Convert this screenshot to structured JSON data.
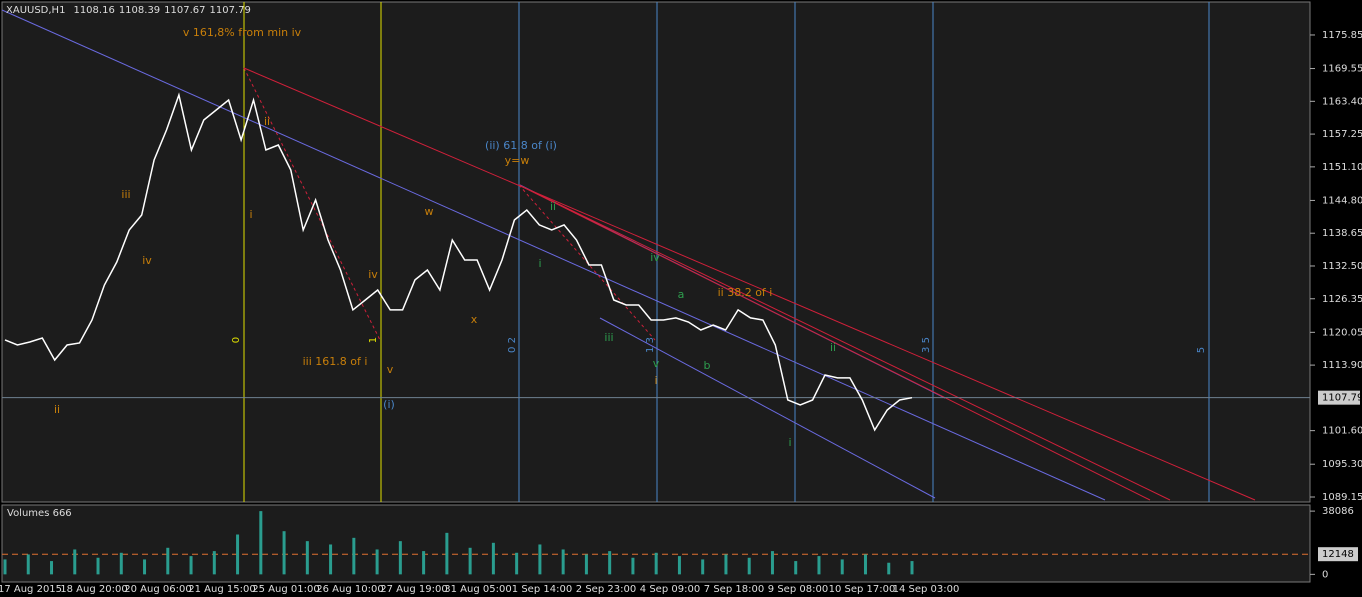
{
  "header": {
    "symbol": "XAUUSD,H1",
    "open": 1108.16,
    "high": 1108.39,
    "low": 1107.67,
    "close": 1107.79
  },
  "chart_data": {
    "type": "line",
    "series": [
      {
        "color": "#ffffff",
        "values": [
          1118.62,
          1117.68,
          1118.24,
          1118.99,
          1114.86,
          1117.68,
          1118.05,
          1122.37,
          1128.94,
          1133.25,
          1139.26,
          1142.07,
          1152.39,
          1158.02,
          1164.59,
          1154.27,
          1159.9,
          1161.78,
          1163.65,
          1156.15,
          1163.65,
          1154.27,
          1155.21,
          1150.52,
          1139.26,
          1144.89,
          1137.38,
          1131.75,
          1124.25,
          1126.12,
          1128.0,
          1124.25,
          1124.25,
          1129.88,
          1131.75,
          1128.0,
          1137.38,
          1133.63,
          1133.63,
          1128.0,
          1133.63,
          1141.13,
          1143.01,
          1140.2,
          1139.26,
          1140.2,
          1137.38,
          1132.69,
          1132.69,
          1126.12,
          1125.18,
          1125.18,
          1122.37,
          1122.37,
          1122.75,
          1121.99,
          1120.49,
          1121.43,
          1120.49,
          1124.25,
          1122.75,
          1122.37,
          1117.68,
          1107.36,
          1106.42,
          1107.36,
          1112.05,
          1111.49,
          1111.49,
          1107.36,
          1101.73,
          1105.48,
          1107.36,
          1107.79
        ]
      }
    ],
    "ylim": [
      1088.21,
      1181.85
    ],
    "yticks": [
      1175.85,
      1169.55,
      {
        "value": 1163.4,
        "label": "1163.40"
      },
      1157.25,
      {
        "value": 1151.1,
        "label": "1151.10"
      },
      {
        "value": 1144.8,
        "label": "1144.80"
      },
      1138.65,
      {
        "value": 1132.5,
        "label": "1132.50"
      },
      1126.35,
      1120.05,
      {
        "value": 1113.9,
        "label": "1113.90"
      },
      {
        "value": 1101.6,
        "label": "1101.60"
      },
      {
        "value": 1095.3,
        "label": "1095.30"
      },
      1089.15
    ],
    "time_labels": [
      "17 Aug 2015",
      "18 Aug 20:00",
      "20 Aug 06:00",
      "21 Aug 15:00",
      "25 Aug 01:00",
      "26 Aug 10:00",
      "27 Aug 19:00",
      "31 Aug 05:00",
      "1 Sep 14:00",
      "2 Sep 23:00",
      "4 Sep 09:00",
      "7 Sep 18:00",
      "9 Sep 08:00",
      "10 Sep 17:00",
      "14 Sep 03:00"
    ],
    "fib_time_labels": [
      "0",
      "1",
      "0 2",
      "1 3",
      "3 5",
      "5"
    ],
    "annotations": [
      {
        "text": "v 161,8% from min iv",
        "color": "#c87f0a"
      },
      {
        "text": "ii",
        "color": "#c87f0a"
      },
      {
        "text": "i",
        "color": "#c87f0a"
      },
      {
        "text": "iii",
        "color": "#c87f0a"
      },
      {
        "text": "iv",
        "color": "#c87f0a"
      },
      {
        "text": "ii",
        "color": "#c87f0a"
      },
      {
        "text": "iii 161.8 of i",
        "color": "#c87f0a"
      },
      {
        "text": "iv",
        "color": "#c87f0a"
      },
      {
        "text": "v",
        "color": "#c87f0a"
      },
      {
        "text": "w",
        "color": "#c87f0a"
      },
      {
        "text": "x",
        "color": "#c87f0a"
      },
      {
        "text": "y=w",
        "color": "#c87f0a"
      },
      {
        "text": "ii 38.2 of i",
        "color": "#c87f0a"
      },
      {
        "text": "i",
        "color": "#c87f0a"
      },
      {
        "text": "v",
        "color": "#2e9e4e"
      },
      {
        "text": "(ii) 61.8 of (i)",
        "color": "#4a86c8"
      },
      {
        "text": "(i)",
        "color": "#4a86c8"
      },
      {
        "text": "ii",
        "color": "#2e9e4e"
      },
      {
        "text": "i",
        "color": "#2e9e4e"
      },
      {
        "text": "iii",
        "color": "#2e9e4e"
      },
      {
        "text": "iv",
        "color": "#2e9e4e"
      },
      {
        "text": "a",
        "color": "#2e9e4e"
      },
      {
        "text": "b",
        "color": "#2e9e4e"
      },
      {
        "text": "ii",
        "color": "#2e9e4e"
      },
      {
        "text": "i",
        "color": "#2e9e4e"
      }
    ]
  },
  "volume_data": {
    "type": "bar",
    "title": "Volumes 666",
    "color": "#2a9d8f",
    "values": [
      9000,
      12000,
      8000,
      15000,
      10000,
      13000,
      9000,
      16000,
      11000,
      14000,
      24000,
      38086,
      26000,
      20000,
      18000,
      22000,
      15000,
      20000,
      14000,
      25000,
      16000,
      19000,
      13000,
      18000,
      15000,
      12000,
      14000,
      10000,
      13000,
      11000,
      9000,
      12000,
      10000,
      14000,
      8000,
      11000,
      9000,
      12000,
      7000,
      8000
    ],
    "ylim": [
      -4600,
      41770
    ],
    "yticks": [
      38086,
      0
    ],
    "level": 12148
  }
}
